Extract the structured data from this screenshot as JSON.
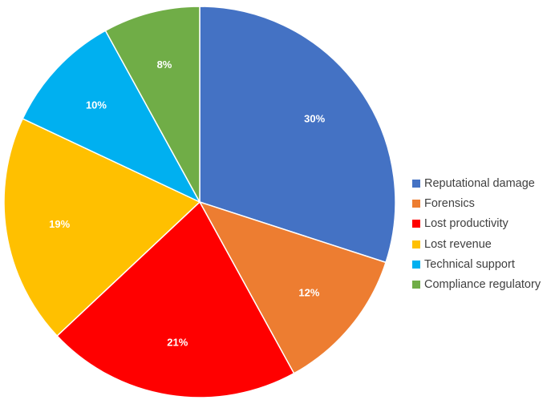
{
  "chart_data": {
    "type": "pie",
    "title": "",
    "categories": [
      "Reputational damage",
      "Forensics",
      "Lost productivity",
      "Lost revenue",
      "Technical support",
      "Compliance regulatory"
    ],
    "values": [
      30,
      12,
      21,
      19,
      10,
      8
    ],
    "data_labels": [
      "30%",
      "12%",
      "21%",
      "19%",
      "10%",
      "8%"
    ],
    "colors": [
      "#4472C4",
      "#ED7D31",
      "#FF0000",
      "#FFC000",
      "#00B0F0",
      "#70AD47"
    ],
    "start_angle": "12 o'clock",
    "direction": "clockwise",
    "legend_position": "right"
  }
}
